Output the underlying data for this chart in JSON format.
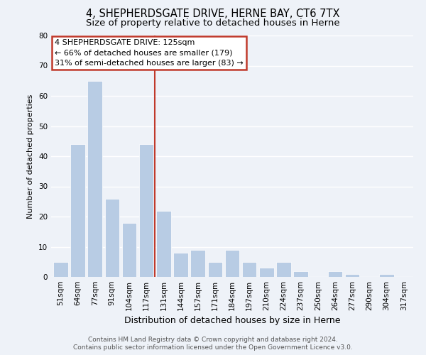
{
  "title": "4, SHEPHERDSGATE DRIVE, HERNE BAY, CT6 7TX",
  "subtitle": "Size of property relative to detached houses in Herne",
  "xlabel": "Distribution of detached houses by size in Herne",
  "ylabel": "Number of detached properties",
  "categories": [
    "51sqm",
    "64sqm",
    "77sqm",
    "91sqm",
    "104sqm",
    "117sqm",
    "131sqm",
    "144sqm",
    "157sqm",
    "171sqm",
    "184sqm",
    "197sqm",
    "210sqm",
    "224sqm",
    "237sqm",
    "250sqm",
    "264sqm",
    "277sqm",
    "290sqm",
    "304sqm",
    "317sqm"
  ],
  "values": [
    5,
    44,
    65,
    26,
    18,
    44,
    22,
    8,
    9,
    5,
    9,
    5,
    3,
    5,
    2,
    0,
    2,
    1,
    0,
    1,
    0
  ],
  "bar_color": "#b8cce4",
  "bar_edge_color": "#ffffff",
  "reference_line_x": 5.5,
  "reference_line_color": "#c0392b",
  "annotation_text_line1": "4 SHEPHERDSGATE DRIVE: 125sqm",
  "annotation_text_line2": "← 66% of detached houses are smaller (179)",
  "annotation_text_line3": "31% of semi-detached houses are larger (83) →",
  "annotation_box_facecolor": "#ffffff",
  "annotation_box_edgecolor": "#c0392b",
  "ylim": [
    0,
    80
  ],
  "yticks": [
    0,
    10,
    20,
    30,
    40,
    50,
    60,
    70,
    80
  ],
  "footer_line1": "Contains HM Land Registry data © Crown copyright and database right 2024.",
  "footer_line2": "Contains public sector information licensed under the Open Government Licence v3.0.",
  "background_color": "#eef2f8",
  "grid_color": "#ffffff",
  "title_fontsize": 10.5,
  "subtitle_fontsize": 9.5,
  "xlabel_fontsize": 9,
  "ylabel_fontsize": 8,
  "tick_fontsize": 7.5,
  "annotation_fontsize": 8,
  "footer_fontsize": 6.5,
  "footer_color": "#555555"
}
